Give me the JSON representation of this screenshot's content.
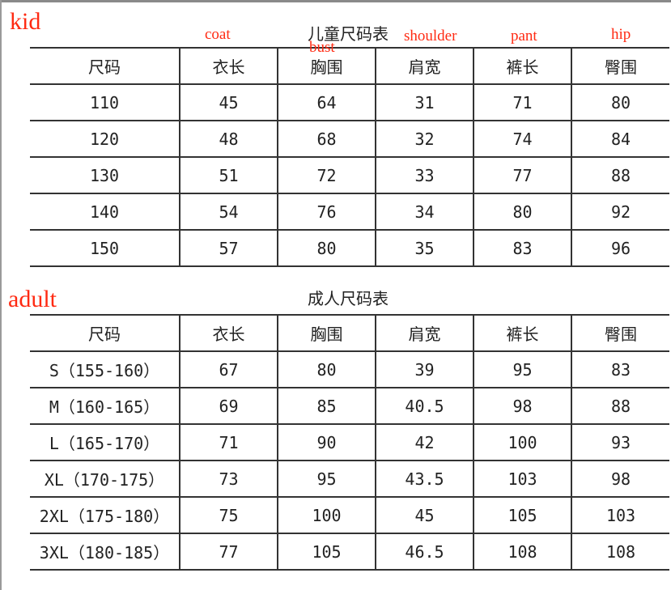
{
  "annotations": {
    "kid": "kid",
    "adult": "adult",
    "coat": "coat",
    "bust": "bust",
    "shoulder": "shoulder",
    "pant": "pant",
    "hip": "hip"
  },
  "kid_table": {
    "title": "儿童尺码表",
    "headers": [
      "尺码",
      "衣长",
      "胸围",
      "肩宽",
      "裤长",
      "臀围"
    ],
    "rows": [
      [
        "110",
        "45",
        "64",
        "31",
        "71",
        "80"
      ],
      [
        "120",
        "48",
        "68",
        "32",
        "74",
        "84"
      ],
      [
        "130",
        "51",
        "72",
        "33",
        "77",
        "88"
      ],
      [
        "140",
        "54",
        "76",
        "34",
        "80",
        "92"
      ],
      [
        "150",
        "57",
        "80",
        "35",
        "83",
        "96"
      ]
    ]
  },
  "adult_table": {
    "title": "成人尺码表",
    "headers": [
      "尺码",
      "衣长",
      "胸围",
      "肩宽",
      "裤长",
      "臀围"
    ],
    "rows": [
      [
        "S（155-160）",
        "67",
        "80",
        "39",
        "95",
        "83"
      ],
      [
        "M（160-165）",
        "69",
        "85",
        "40.5",
        "98",
        "88"
      ],
      [
        "L（165-170）",
        "71",
        "90",
        "42",
        "100",
        "93"
      ],
      [
        "XL（170-175）",
        "73",
        "95",
        "43.5",
        "103",
        "98"
      ],
      [
        "2XL（175-180）",
        "75",
        "100",
        "45",
        "105",
        "103"
      ],
      [
        "3XL（180-185）",
        "77",
        "105",
        "46.5",
        "108",
        "108"
      ]
    ]
  },
  "colors": {
    "annotation": "#ff2a12",
    "grid": "#333333"
  }
}
